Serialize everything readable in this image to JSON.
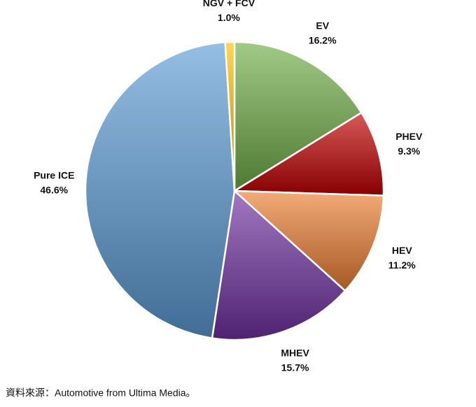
{
  "chart_data": {
    "type": "pie",
    "categories": [
      "EV",
      "PHEV",
      "HEV",
      "MHEV",
      "Pure ICE",
      "NGV + FCV"
    ],
    "values": [
      16.2,
      9.3,
      11.2,
      15.7,
      46.6,
      1.0
    ],
    "value_labels": [
      "16.2%",
      "9.3%",
      "11.2%",
      "15.7%",
      "46.6%",
      "1.0%"
    ],
    "colors": [
      "#70ad47",
      "#c00000",
      "#ed7d31",
      "#7030a0",
      "#5b9bd5",
      "#ffc000"
    ],
    "source": "資料來源：Automotive from Ultima Media。"
  }
}
